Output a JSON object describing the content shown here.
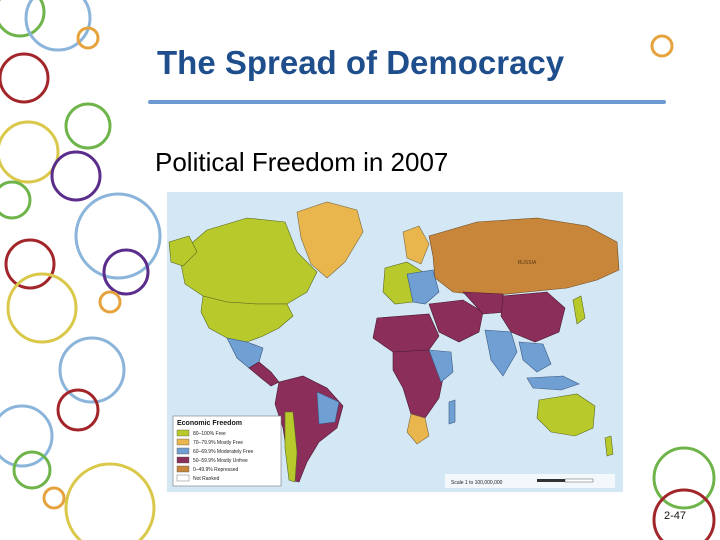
{
  "slide": {
    "title": "The Spread of Democracy",
    "subtitle": "Political Freedom in 2007",
    "page_number": "2-47"
  },
  "map": {
    "legend_title": "Economic Freedom",
    "legend_items": [
      {
        "label": "80–100% Free",
        "color": "#b8c92c"
      },
      {
        "label": "70–79.9% Mostly Free",
        "color": "#e8b64c"
      },
      {
        "label": "60–69.9% Moderately Free",
        "color": "#6f9fd3"
      },
      {
        "label": "50–59.9% Mostly Unfree",
        "color": "#8b2e5a"
      },
      {
        "label": "0–49.9% Repressed",
        "color": "#c8863a"
      },
      {
        "label": "Not Ranked",
        "color": "#ffffff"
      }
    ],
    "ocean_color": "#d4e7f5",
    "scale_text": "Scale 1 to 100,000,000",
    "label_russia": "RUSSIA"
  },
  "colors": {
    "title": "#1f4e8c",
    "rule": "#6d9bd1",
    "circle_colors": [
      "#e6a23c",
      "#8bb4db",
      "#d9c84a",
      "#a2252a",
      "#6fb44a",
      "#5a2d8c"
    ]
  }
}
